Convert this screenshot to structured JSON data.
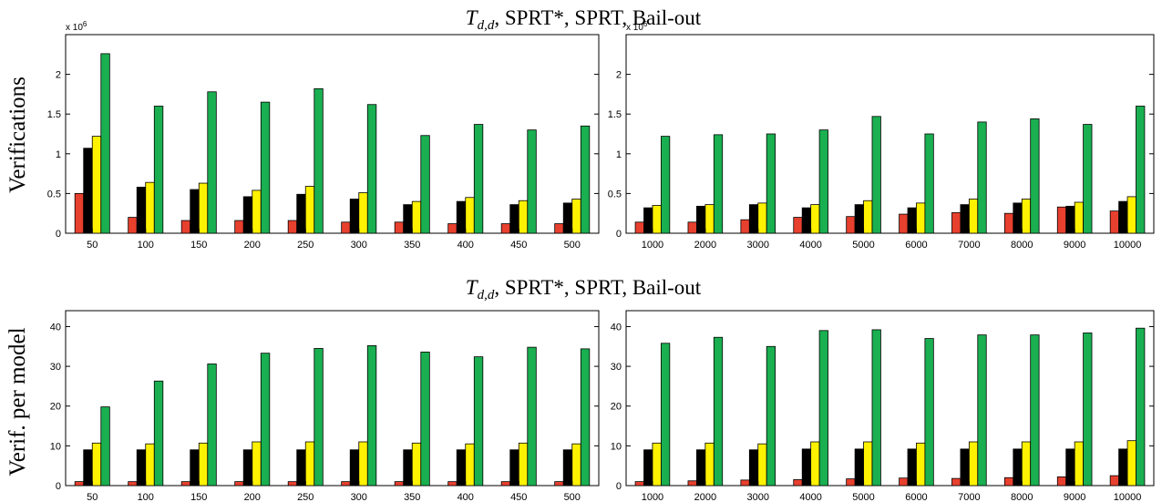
{
  "titles": {
    "top": {
      "prefix": "T",
      "subscript": "d,d",
      "rest": ", SPRT*, SPRT, Bail-out"
    },
    "bottom": {
      "prefix": "T",
      "subscript": "d,d",
      "rest": ", SPRT*, SPRT, Bail-out"
    }
  },
  "ylabels": {
    "top": "Verifications",
    "bottom": "Verif. per model"
  },
  "colors": [
    "#e8402e",
    "#000000",
    "#fff200",
    "#1aaf50"
  ],
  "chart_data": [
    {
      "type": "bar",
      "title": "T_{d,d}, SPRT*, SPRT, Bail-out",
      "ylabel": "Verifications",
      "multiplier": "x 10^6",
      "categories": [
        "50",
        "100",
        "150",
        "200",
        "250",
        "300",
        "350",
        "400",
        "450",
        "500"
      ],
      "ylim": [
        0,
        2.5
      ],
      "yticks": [
        "0",
        "0.5",
        "1",
        "1.5",
        "2"
      ],
      "series": [
        {
          "values": [
            0.5,
            0.2,
            0.16,
            0.16,
            0.16,
            0.14,
            0.14,
            0.12,
            0.12,
            0.12
          ]
        },
        {
          "values": [
            1.07,
            0.58,
            0.55,
            0.46,
            0.49,
            0.43,
            0.36,
            0.4,
            0.36,
            0.38
          ]
        },
        {
          "values": [
            1.22,
            0.64,
            0.63,
            0.54,
            0.59,
            0.51,
            0.4,
            0.45,
            0.41,
            0.43
          ]
        },
        {
          "values": [
            2.26,
            1.6,
            1.78,
            1.65,
            1.82,
            1.62,
            1.23,
            1.37,
            1.3,
            1.35
          ]
        }
      ]
    },
    {
      "type": "bar",
      "title": "",
      "ylabel": "",
      "multiplier": "x 10^6",
      "categories": [
        "1000",
        "2000",
        "3000",
        "4000",
        "5000",
        "6000",
        "7000",
        "8000",
        "9000",
        "10000"
      ],
      "ylim": [
        0,
        2.5
      ],
      "yticks": [
        "0",
        "0.5",
        "1",
        "1.5",
        "2"
      ],
      "series": [
        {
          "values": [
            0.14,
            0.14,
            0.17,
            0.2,
            0.21,
            0.24,
            0.26,
            0.25,
            0.33,
            0.28
          ]
        },
        {
          "values": [
            0.32,
            0.34,
            0.36,
            0.32,
            0.36,
            0.32,
            0.36,
            0.38,
            0.34,
            0.4
          ]
        },
        {
          "values": [
            0.35,
            0.36,
            0.38,
            0.36,
            0.41,
            0.38,
            0.43,
            0.43,
            0.39,
            0.46
          ]
        },
        {
          "values": [
            1.22,
            1.24,
            1.25,
            1.3,
            1.47,
            1.25,
            1.4,
            1.44,
            1.37,
            1.6
          ]
        }
      ]
    },
    {
      "type": "bar",
      "title": "T_{d,d}, SPRT*, SPRT, Bail-out",
      "ylabel": "Verif. per model",
      "categories": [
        "50",
        "100",
        "150",
        "200",
        "250",
        "300",
        "350",
        "400",
        "450",
        "500"
      ],
      "ylim": [
        0,
        44
      ],
      "yticks": [
        "0",
        "10",
        "20",
        "30",
        "40"
      ],
      "series": [
        {
          "values": [
            1,
            1,
            1,
            1,
            1,
            1,
            1,
            1,
            1,
            1
          ]
        },
        {
          "values": [
            9,
            9,
            9,
            9,
            9,
            9,
            9,
            9,
            9,
            9
          ]
        },
        {
          "values": [
            10.7,
            10.5,
            10.7,
            11,
            11,
            11,
            10.7,
            10.5,
            10.7,
            10.5
          ]
        },
        {
          "values": [
            19.8,
            26.3,
            30.6,
            33.3,
            34.5,
            35.2,
            33.6,
            32.4,
            34.8,
            34.4
          ]
        }
      ]
    },
    {
      "type": "bar",
      "title": "",
      "ylabel": "",
      "categories": [
        "1000",
        "2000",
        "3000",
        "4000",
        "5000",
        "6000",
        "7000",
        "8000",
        "9000",
        "10000"
      ],
      "ylim": [
        0,
        44
      ],
      "yticks": [
        "0",
        "10",
        "20",
        "30",
        "40"
      ],
      "series": [
        {
          "values": [
            1,
            1.2,
            1.4,
            1.5,
            1.7,
            1.9,
            1.8,
            2,
            2.2,
            2.5
          ]
        },
        {
          "values": [
            9,
            9,
            9,
            9.2,
            9.2,
            9.2,
            9.2,
            9.2,
            9.2,
            9.2
          ]
        },
        {
          "values": [
            10.7,
            10.7,
            10.5,
            11,
            11,
            10.7,
            11,
            11,
            11,
            11.3
          ]
        },
        {
          "values": [
            35.8,
            37.3,
            35,
            39,
            39.2,
            37,
            37.9,
            37.9,
            38.4,
            39.6
          ]
        }
      ]
    }
  ]
}
